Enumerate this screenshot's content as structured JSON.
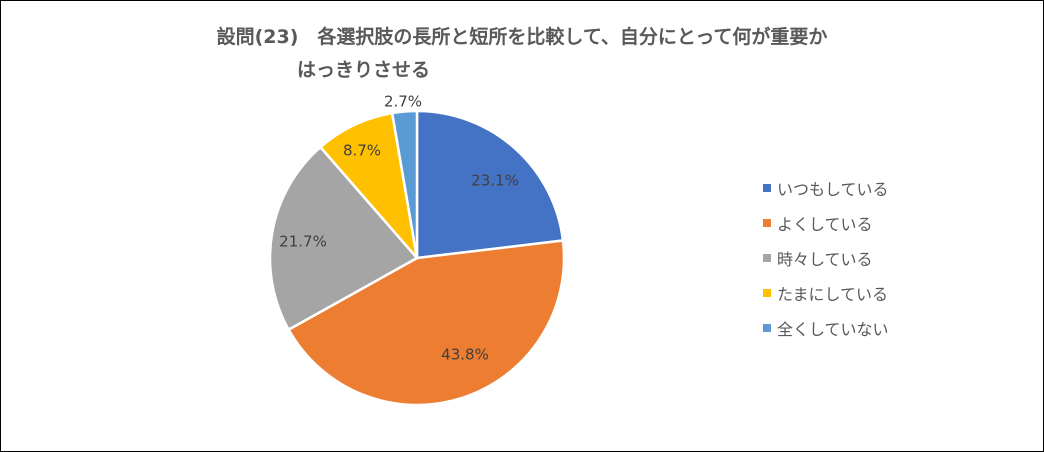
{
  "chart_data": {
    "type": "pie",
    "title": "設問(23)　各選択肢の長所と短所を比較して、自分にとって何が重要かはっきりさせる",
    "title_lines": [
      "設問(23)　各選択肢の長所と短所を比較して、自分にとって何が重要か",
      "はっきりさせる"
    ],
    "categories": [
      "いつもしている",
      "よくしている",
      "時々している",
      "たまにしている",
      "全くしていない"
    ],
    "values": [
      23.1,
      43.8,
      21.7,
      8.7,
      2.7
    ],
    "data_labels": [
      "23.1%",
      "43.8%",
      "21.7%",
      "8.7%",
      "2.7%"
    ],
    "colors": [
      "#4472C4",
      "#ED7D31",
      "#A5A5A5",
      "#FFC000",
      "#5B9BD5"
    ],
    "legend_placement": "right",
    "start_angle": "top, clockwise"
  }
}
